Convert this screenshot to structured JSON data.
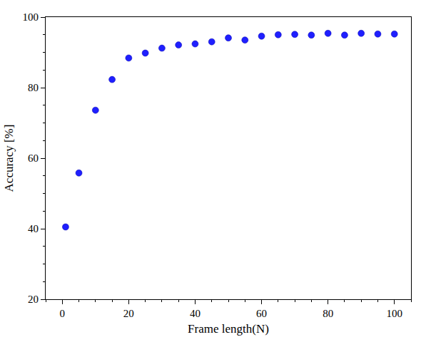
{
  "chart_data": {
    "type": "scatter",
    "x_label": "Frame length(N)",
    "y_label": "Accuracy [%]",
    "x": [
      1,
      5,
      10,
      15,
      20,
      25,
      30,
      35,
      40,
      45,
      50,
      55,
      60,
      65,
      70,
      75,
      80,
      85,
      90,
      95,
      100
    ],
    "values": [
      40.5,
      55.8,
      73.6,
      82.3,
      88.4,
      89.8,
      91.2,
      92.1,
      92.4,
      93.0,
      94.1,
      93.5,
      94.6,
      95.0,
      95.1,
      94.9,
      95.4,
      94.9,
      95.4,
      95.2,
      95.2
    ],
    "color": "#1f1fff",
    "marker": "circle",
    "xlim": [
      -5,
      105
    ],
    "xticks": [
      0,
      20,
      40,
      60,
      80,
      100
    ],
    "ylim": [
      20,
      100
    ],
    "yticks": [
      20,
      40,
      60,
      80,
      100
    ],
    "grid": false
  }
}
